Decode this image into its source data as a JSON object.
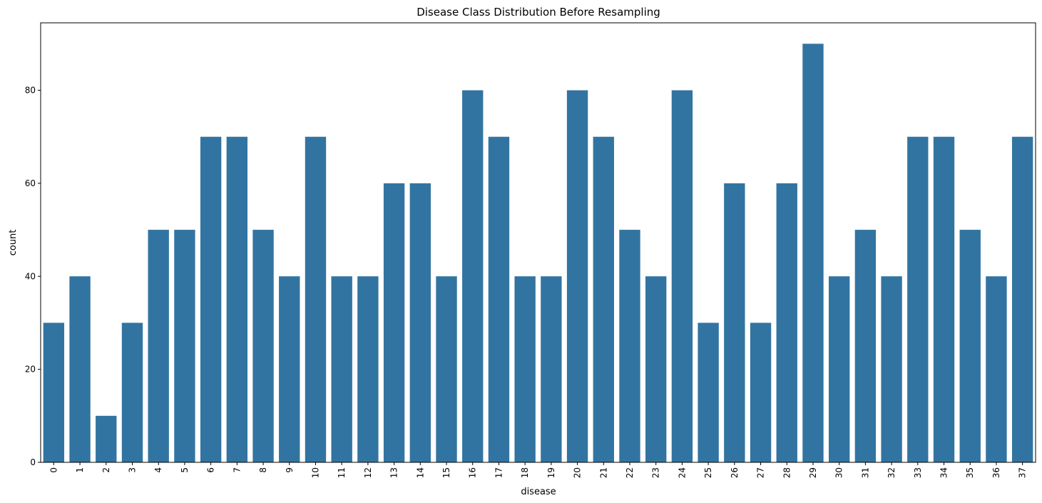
{
  "chart_data": {
    "type": "bar",
    "title": "Disease Class Distribution Before Resampling",
    "xlabel": "disease",
    "ylabel": "count",
    "ylim": [
      0,
      94.5
    ],
    "yticks": [
      0,
      20,
      40,
      60,
      80
    ],
    "grid": false,
    "bar_color": "#3274a1",
    "categories": [
      "0",
      "1",
      "2",
      "3",
      "4",
      "5",
      "6",
      "7",
      "8",
      "9",
      "10",
      "11",
      "12",
      "13",
      "14",
      "15",
      "16",
      "17",
      "18",
      "19",
      "20",
      "21",
      "22",
      "23",
      "24",
      "25",
      "26",
      "27",
      "28",
      "29",
      "30",
      "31",
      "32",
      "33",
      "34",
      "35",
      "36",
      "37"
    ],
    "values": [
      30,
      40,
      10,
      30,
      50,
      50,
      70,
      70,
      50,
      40,
      70,
      40,
      40,
      60,
      60,
      40,
      80,
      70,
      40,
      40,
      80,
      70,
      50,
      40,
      80,
      30,
      60,
      30,
      60,
      90,
      40,
      50,
      40,
      70,
      70,
      50,
      40,
      70
    ]
  }
}
